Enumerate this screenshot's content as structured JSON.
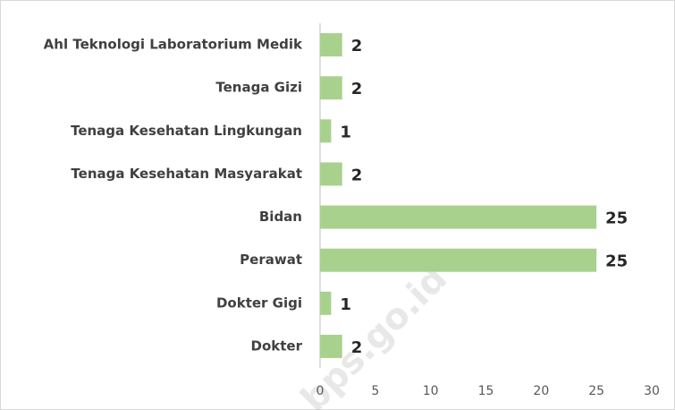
{
  "chart_data": {
    "type": "bar",
    "orientation": "horizontal",
    "categories": [
      "Ahl Teknologi Laboratorium Medik",
      "Tenaga Gizi",
      "Tenaga Kesehatan Lingkungan",
      "Tenaga Kesehatan Masyarakat",
      "Bidan",
      "Perawat",
      "Dokter Gigi",
      "Dokter"
    ],
    "values": [
      2,
      2,
      1,
      2,
      25,
      25,
      1,
      2
    ],
    "color": "#a9d18e",
    "xlim": [
      0,
      30
    ],
    "xticks": [
      0,
      5,
      10,
      15,
      20,
      25,
      30
    ],
    "grid": false,
    "watermark": "bps.go.id"
  }
}
